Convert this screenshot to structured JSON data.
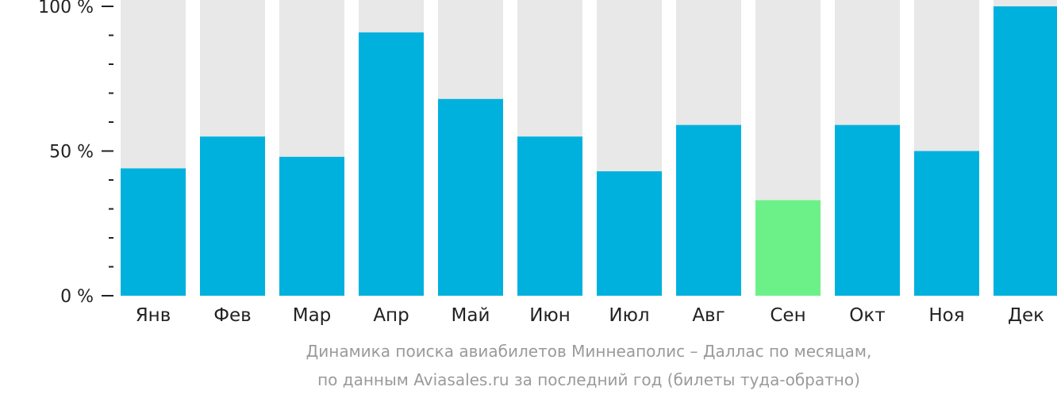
{
  "chart_data": {
    "type": "bar",
    "categories": [
      "Янв",
      "Фев",
      "Мар",
      "Апр",
      "Май",
      "Июн",
      "Июл",
      "Авг",
      "Сен",
      "Окт",
      "Ноя",
      "Дек"
    ],
    "values": [
      44,
      55,
      48,
      91,
      68,
      55,
      43,
      59,
      33,
      59,
      50,
      100
    ],
    "ylim": [
      0,
      100
    ],
    "yticks": [
      "0 %",
      "50 %",
      "100 %"
    ],
    "highlight_category": "Сен",
    "grid": false,
    "colors": {
      "bar": "#00b1de",
      "highlight": "#6cf188",
      "background_bar": "#e8e8e8",
      "caption": "#9a9a9a"
    }
  },
  "caption": {
    "line1": "Динамика поиска авиабилетов Миннеаполис – Даллас по месяцам,",
    "line2": "по данным Aviasales.ru за последний год (билеты туда-обратно)"
  }
}
